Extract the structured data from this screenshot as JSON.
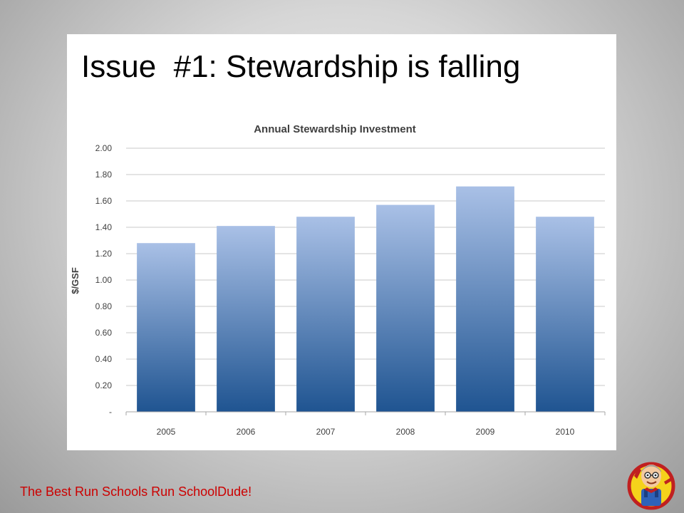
{
  "slide": {
    "title": "Issue  #1: Stewardship is falling"
  },
  "footer": {
    "tagline": "The Best Run Schools Run SchoolDude!",
    "color": "#cc0000"
  },
  "mascot": {
    "icon": "schooldude-mascot-icon"
  },
  "colors": {
    "bar_top": "#a9c0e6",
    "bar_bottom": "#1f5491",
    "grid": "#c8c8c8",
    "axis_text": "#404040"
  },
  "chart_data": {
    "type": "bar",
    "title": "Annual Stewardship Investment",
    "xlabel": "",
    "ylabel": "$/GSF",
    "categories": [
      "2005",
      "2006",
      "2007",
      "2008",
      "2009",
      "2010"
    ],
    "values": [
      1.28,
      1.41,
      1.48,
      1.57,
      1.71,
      1.48
    ],
    "ylim": [
      0,
      2.0
    ],
    "yticks": [
      {
        "value": 0,
        "label": "-"
      },
      {
        "value": 0.2,
        "label": "0.20"
      },
      {
        "value": 0.4,
        "label": "0.40"
      },
      {
        "value": 0.6,
        "label": "0.60"
      },
      {
        "value": 0.8,
        "label": "0.80"
      },
      {
        "value": 1.0,
        "label": "1.00"
      },
      {
        "value": 1.2,
        "label": "1.20"
      },
      {
        "value": 1.4,
        "label": "1.40"
      },
      {
        "value": 1.6,
        "label": "1.60"
      },
      {
        "value": 1.8,
        "label": "1.80"
      },
      {
        "value": 2.0,
        "label": "2.00"
      }
    ],
    "grid": true,
    "legend": "none"
  }
}
